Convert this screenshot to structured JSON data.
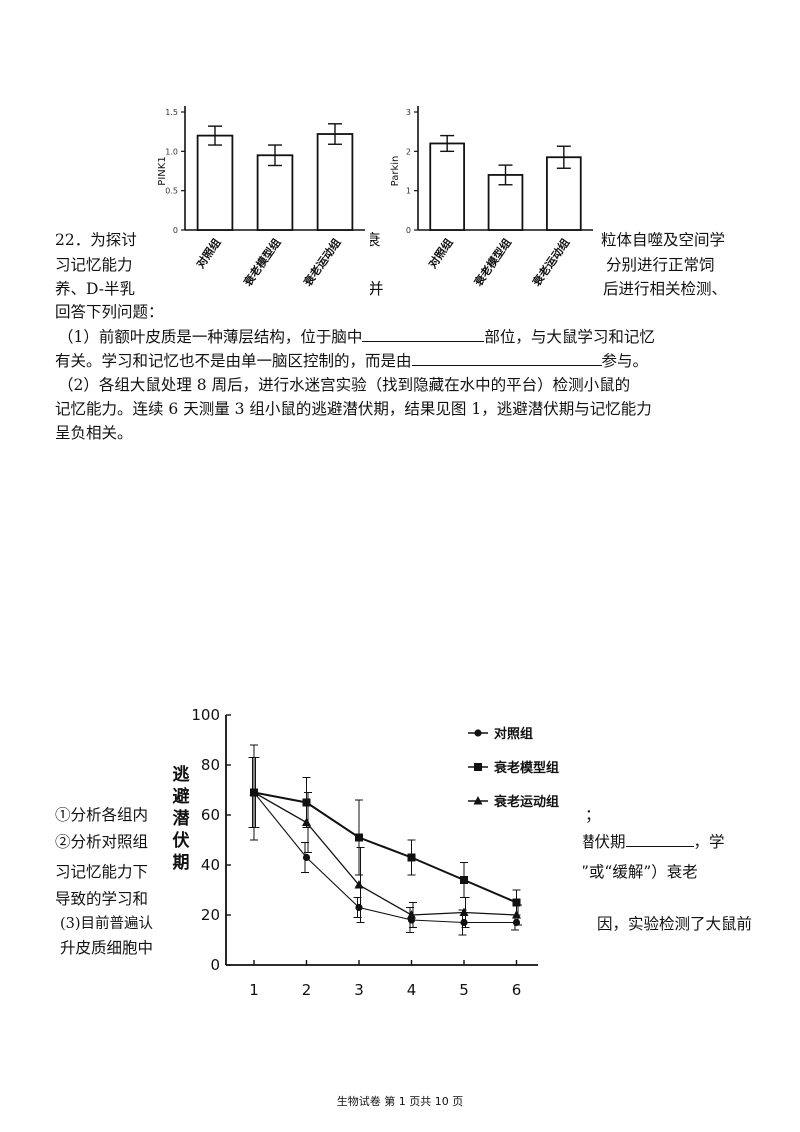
{
  "question": {
    "line1_left": "22．为探讨",
    "line1_mid": "衰",
    "line1_right": "粒体自噬及空间学",
    "line2_left": "习记忆能力",
    "line2_mid": "、",
    "line2_right": "分别进行正常饲",
    "line3_left": "养、D-半乳",
    "line3_mid": "并",
    "line3_right": "后进行相关检测、",
    "line4": "回答下列问题：",
    "p1_a": "（1）前额叶皮质是一种薄层结构，位于脑中",
    "p1_b": "部位，与大鼠学习和记忆",
    "p1_c": "有关。学习和记忆也不是由单一脑区控制的，而是由",
    "p1_d": "参与。",
    "p2_a": "（2）各组大鼠处理 8 周后，进行水迷宫实验（找到隐藏在水中的平台）检测小鼠的",
    "p2_b": "记忆能力。连续 6 天测量 3 组小鼠的逃避潜伏期，结果见图 1，逃避潜伏期与记忆能力",
    "p2_c": "呈负相关。",
    "q_i_left": "①分析各组内",
    "q_i_right": "；",
    "q_ii_left": "②分析对照组",
    "q_ii_right_a": "潜伏期",
    "q_ii_right_b": "，学",
    "q_iii_left": "习记忆能力下",
    "q_iii_right": "”或“缓解”）衰老",
    "q_iv_left": "导致的学习和",
    "p3_left": "(3)目前普遍认",
    "p3_right": "因，实验检测了大鼠前",
    "p3_2_left": "升皮质细胞中"
  },
  "chart_data": [
    {
      "type": "bar",
      "ylabel": "PINK1",
      "categories": [
        "对照组",
        "衰老模型组",
        "衰老运动组"
      ],
      "values": [
        1.2,
        0.95,
        1.22
      ],
      "errors": [
        0.12,
        0.13,
        0.13
      ],
      "ylim": [
        0,
        1.5
      ],
      "yticks": [
        "0",
        "0.5",
        "1.0",
        "1.5"
      ]
    },
    {
      "type": "bar",
      "ylabel": "Parkin",
      "categories": [
        "对照组",
        "衰老模型组",
        "衰老运动组"
      ],
      "values": [
        2.2,
        1.4,
        1.85
      ],
      "errors": [
        0.2,
        0.25,
        0.28
      ],
      "ylim": [
        0,
        3
      ],
      "yticks": [
        "0",
        "1",
        "2",
        "3"
      ]
    },
    {
      "type": "line",
      "ylabel": "逃避潜伏期",
      "x": [
        1,
        2,
        3,
        4,
        5,
        6
      ],
      "xticks": [
        "1",
        "2",
        "3",
        "4",
        "5",
        "6"
      ],
      "yticks": [
        "0",
        "20",
        "40",
        "60",
        "80",
        "100"
      ],
      "ylim": [
        0,
        100
      ],
      "legend_position": "top-right",
      "series": [
        {
          "name": "对照组",
          "marker": "circle",
          "values": [
            69,
            43,
            23,
            18,
            17,
            17
          ],
          "errors": [
            14,
            6,
            4,
            5,
            5,
            3
          ]
        },
        {
          "name": "衰老模型组",
          "marker": "square",
          "values": [
            69,
            65,
            51,
            43,
            34,
            25
          ],
          "errors": [
            19,
            10,
            15,
            7,
            7,
            5
          ]
        },
        {
          "name": "衰老运动组",
          "marker": "triangle",
          "values": [
            69,
            57,
            32,
            20,
            21,
            20
          ],
          "errors": [
            14,
            12,
            15,
            5,
            6,
            4
          ]
        }
      ]
    }
  ],
  "footer": "生物试卷 第 1 页共 10 页"
}
